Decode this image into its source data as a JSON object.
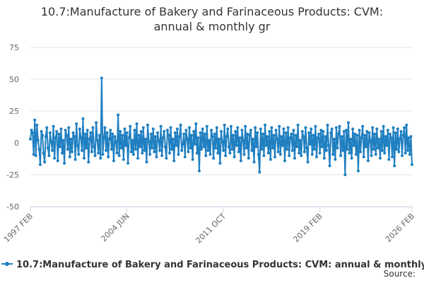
{
  "chart_data": {
    "type": "line",
    "title": [
      "10.7:Manufacture of Bakery and Farinaceous Products: CVM:",
      "annual & monthly gr"
    ],
    "source": "Source:",
    "categories": [
      "1997 FEB",
      null,
      null,
      null,
      null,
      null,
      null,
      null,
      null,
      null,
      null,
      null,
      null,
      null,
      null,
      null,
      null,
      null,
      null,
      null,
      null,
      null,
      null,
      null,
      null,
      null,
      null,
      null,
      null,
      null,
      null,
      null,
      null,
      null,
      null,
      null,
      null,
      null,
      null,
      null,
      null,
      null,
      null,
      null,
      null,
      null,
      null,
      null,
      null,
      null,
      null,
      null,
      null,
      null,
      null,
      null,
      null,
      null,
      null,
      null,
      null,
      null,
      null,
      null,
      null,
      null,
      null,
      null,
      null,
      null,
      null,
      null,
      null,
      null,
      null,
      null,
      null,
      null,
      null,
      null,
      null,
      null,
      null,
      null,
      null,
      null,
      null,
      null,
      "2004 JUN",
      null,
      null,
      null,
      null,
      null,
      null,
      null,
      null,
      null,
      null,
      null,
      null,
      null,
      null,
      null,
      null,
      null,
      null,
      null,
      null,
      null,
      null,
      null,
      null,
      null,
      null,
      null,
      null,
      null,
      null,
      null,
      null,
      null,
      null,
      null,
      null,
      null,
      null,
      null,
      null,
      null,
      null,
      null,
      null,
      null,
      null,
      null,
      null,
      null,
      null,
      null,
      null,
      null,
      null,
      null,
      null,
      null,
      null,
      null,
      null,
      null,
      null,
      null,
      null,
      null,
      null,
      null,
      null,
      null,
      null,
      null,
      null,
      null,
      null,
      null,
      null,
      null,
      null,
      null,
      null,
      null,
      null,
      null,
      null,
      null,
      null,
      null,
      "2011 OCT",
      null,
      null,
      null,
      null,
      null,
      null,
      null,
      null,
      null,
      null,
      null,
      null,
      null,
      null,
      null,
      null,
      null,
      null,
      null,
      null,
      null,
      null,
      null,
      null,
      null,
      null,
      null,
      null,
      null,
      null,
      null,
      null,
      null,
      null,
      null,
      null,
      null,
      null,
      null,
      null,
      null,
      null,
      null,
      null,
      null,
      null,
      null,
      null,
      null,
      null,
      null,
      null,
      null,
      null,
      null,
      null,
      null,
      null,
      null,
      null,
      null,
      null,
      null,
      null,
      null,
      null,
      null,
      null,
      null,
      null,
      null,
      null,
      null,
      null,
      null,
      null,
      null,
      null,
      null,
      null,
      null,
      null,
      null,
      null,
      null,
      null,
      null,
      "2019 FEB",
      null,
      null,
      null,
      null,
      null,
      null,
      null,
      null,
      null,
      null,
      null,
      null,
      null,
      null,
      null,
      null,
      null,
      null,
      null,
      null,
      null,
      null,
      null,
      null,
      null,
      null,
      null,
      null,
      null,
      null,
      null,
      null,
      null,
      null,
      null,
      null,
      null,
      null,
      null,
      null,
      null,
      null,
      null,
      null,
      null,
      null,
      null,
      null,
      null,
      null,
      null,
      null,
      null,
      null,
      null,
      null,
      null,
      null,
      null,
      null,
      null,
      null,
      null,
      null,
      null,
      null,
      null,
      null,
      null,
      null,
      null,
      null,
      null,
      null,
      null,
      null,
      null,
      null,
      null,
      null,
      null,
      null,
      null,
      "2026 FEB"
    ],
    "series": [
      {
        "name": "10.7:Manufacture of Bakery and Farinaceous Products: CVM: annual & monthly gr",
        "color": "#1f7fc0",
        "values": [
          3,
          10,
          8,
          -9,
          18,
          -10,
          14,
          2,
          -5,
          -17,
          9,
          6,
          -8,
          -15,
          5,
          12,
          -4,
          -10,
          8,
          1,
          -6,
          13,
          -12,
          4,
          9,
          -14,
          7,
          -3,
          11,
          -8,
          2,
          -16,
          10,
          6,
          -5,
          12,
          -11,
          3,
          -7,
          8,
          5,
          -13,
          15,
          -2,
          -9,
          11,
          4,
          -6,
          19,
          -12,
          7,
          -4,
          10,
          -15,
          3,
          8,
          -7,
          12,
          -3,
          -10,
          16,
          2,
          -8,
          6,
          -12,
          51,
          -9,
          4,
          12,
          -6,
          8,
          -11,
          3,
          10,
          -5,
          7,
          -14,
          5,
          1,
          -8,
          22,
          -10,
          9,
          -4,
          6,
          -13,
          11,
          -2,
          8,
          -16,
          4,
          13,
          -7,
          2,
          -9,
          10,
          -5,
          15,
          -12,
          6,
          -3,
          9,
          -8,
          12,
          -6,
          3,
          -15,
          14,
          1,
          -9,
          7,
          -4,
          11,
          -7,
          5,
          -11,
          8,
          2,
          -6,
          13,
          -10,
          4,
          9,
          -3,
          -12,
          10,
          6,
          -8,
          12,
          -5,
          3,
          -14,
          8,
          -2,
          11,
          -9,
          5,
          14,
          -6,
          -1,
          7,
          -11,
          10,
          3,
          -7,
          12,
          -4,
          6,
          -13,
          9,
          -1,
          15,
          -8,
          4,
          -22,
          8,
          -5,
          11,
          -3,
          7,
          -10,
          13,
          -6,
          2,
          -9,
          10,
          5,
          -12,
          7,
          -4,
          12,
          -8,
          3,
          -16,
          9,
          1,
          -6,
          14,
          -10,
          5,
          11,
          -3,
          -8,
          13,
          -5,
          6,
          -11,
          9,
          -2,
          12,
          -7,
          4,
          -14,
          10,
          2,
          -9,
          13,
          -4,
          7,
          -12,
          6,
          10,
          -6,
          3,
          -15,
          12,
          -3,
          8,
          -9,
          -23,
          11,
          -5,
          7,
          -10,
          14,
          -2,
          5,
          -8,
          9,
          -13,
          12,
          -4,
          6,
          -11,
          10,
          3,
          -7,
          13,
          -9,
          5,
          -2,
          11,
          -14,
          8,
          -5,
          12,
          -10,
          4,
          7,
          -6,
          10,
          -12,
          6,
          -3,
          14,
          -8,
          2,
          -10,
          9,
          5,
          -7,
          12,
          -4,
          -15,
          8,
          -1,
          11,
          -9,
          6,
          -5,
          13,
          -11,
          4,
          7,
          -8,
          10,
          -3,
          9,
          -12,
          5,
          -6,
          14,
          -2,
          -18,
          8,
          11,
          -9,
          3,
          -13,
          12,
          -4,
          7,
          13,
          -10,
          5,
          -6,
          9,
          -25,
          10,
          -5,
          16,
          -8,
          3,
          -12,
          11,
          -2,
          7,
          -9,
          6,
          -22,
          10,
          -7,
          4,
          13,
          -11,
          6,
          -3,
          9,
          -14,
          8,
          2,
          -10,
          12,
          -5,
          7,
          -9,
          11,
          -4,
          3,
          -12,
          9,
          -6,
          13,
          -8,
          5,
          -2,
          10,
          -13,
          7,
          4,
          -11,
          12,
          -18,
          8,
          -5,
          11,
          -7,
          3,
          9,
          -10,
          6,
          12,
          -8,
          14,
          -6,
          4,
          -9,
          5,
          -17
        ]
      }
    ],
    "ylim": [
      -50,
      75
    ],
    "yticks": [
      -50,
      -25,
      0,
      25,
      50,
      75
    ],
    "grid": true
  }
}
